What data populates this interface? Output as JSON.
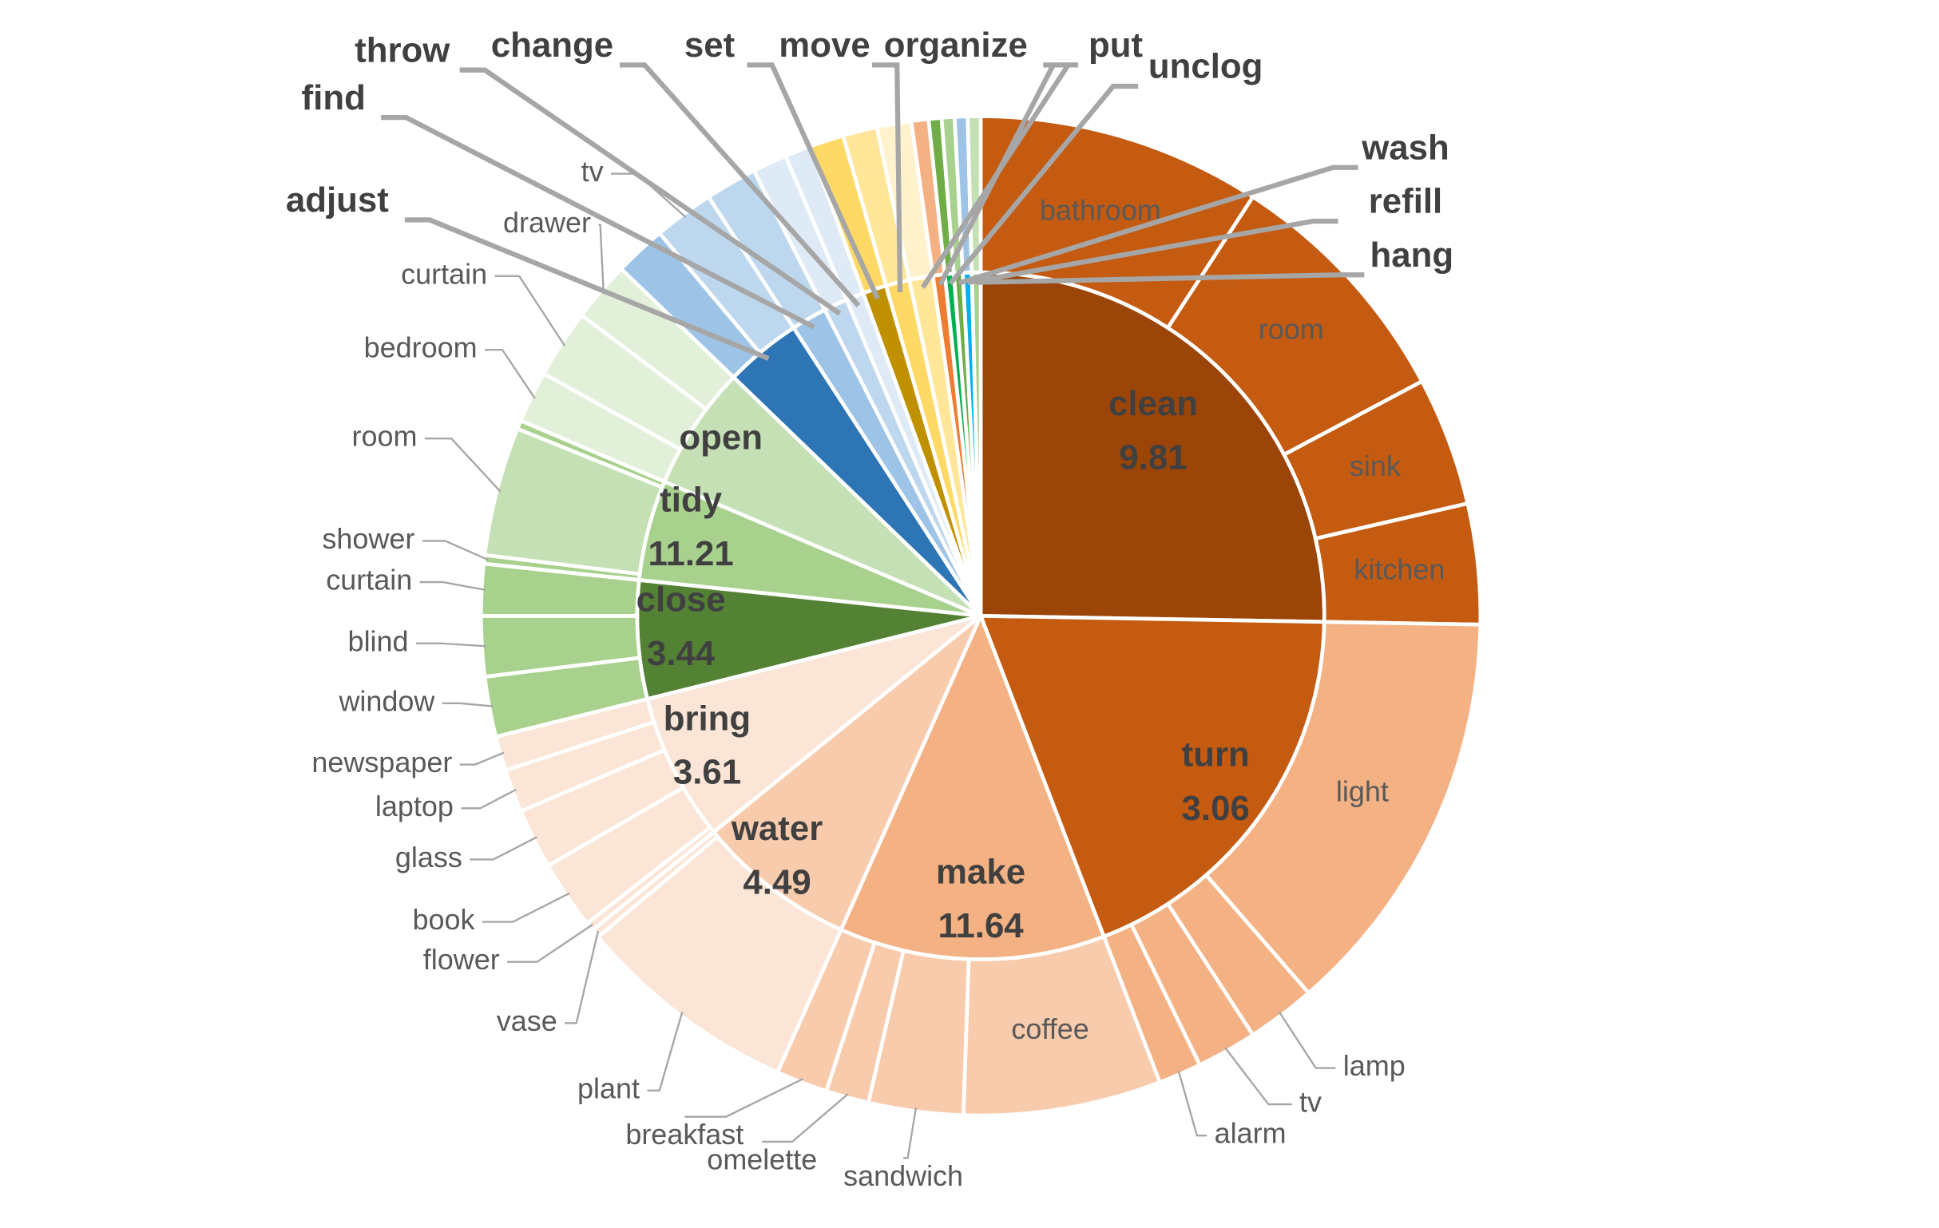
{
  "chart_data": {
    "type": "sunburst",
    "children": [
      {
        "name": "clean",
        "value": 91,
        "score": 9.81,
        "color": "#9c4509",
        "children": [
          {
            "name": "bathroom",
            "value": 33,
            "color": "#c55a11"
          },
          {
            "name": "room",
            "value": 29,
            "color": "#c55a11"
          },
          {
            "name": "sink",
            "value": 15,
            "color": "#c55a11"
          },
          {
            "name": "kitchen",
            "value": 14,
            "color": "#c55a11"
          }
        ]
      },
      {
        "name": "turn",
        "value": 68,
        "score": 3.06,
        "color": "#c55a11",
        "children": [
          {
            "name": "light",
            "value": 48,
            "color": "#f4b183"
          },
          {
            "name": "lamp",
            "value": 8,
            "color": "#f4b183"
          },
          {
            "name": "tv",
            "value": 7,
            "color": "#f4b183"
          },
          {
            "name": "alarm",
            "value": 5,
            "color": "#f4b183"
          }
        ]
      },
      {
        "name": "make",
        "value": 45,
        "score": 11.64,
        "color": "#f4b183",
        "children": [
          {
            "name": "coffee",
            "value": 23,
            "color": "#f8cbad"
          },
          {
            "name": "sandwich",
            "value": 11,
            "color": "#f8cbad"
          },
          {
            "name": "omelette",
            "value": 5,
            "color": "#f8cbad"
          },
          {
            "name": "breakfast",
            "value": 6,
            "color": "#f8cbad"
          }
        ]
      },
      {
        "name": "water",
        "value": 27,
        "score": 4.49,
        "color": "#f8cbad",
        "children": [
          {
            "name": "plant",
            "value": 26,
            "color": "#fbe5d6"
          },
          {
            "name": "vase",
            "value": 1,
            "color": "#fbe5d6"
          }
        ]
      },
      {
        "name": "bring",
        "value": 25,
        "score": 3.61,
        "color": "#fbe5d6",
        "children": [
          {
            "name": "flower",
            "value": 1,
            "color": "#fbe5d6"
          },
          {
            "name": "book",
            "value": 8,
            "color": "#fbe5d6"
          },
          {
            "name": "glass",
            "value": 7,
            "color": "#fbe5d6"
          },
          {
            "name": "laptop",
            "value": 5,
            "color": "#fbe5d6"
          },
          {
            "name": "newspaper",
            "value": 4,
            "color": "#fbe5d6"
          }
        ]
      },
      {
        "name": "close",
        "value": 20,
        "score": 3.44,
        "color": "#548235",
        "children": [
          {
            "name": "window",
            "value": 7,
            "color": "#a9d18e"
          },
          {
            "name": "blind",
            "value": 7,
            "color": "#a9d18e"
          },
          {
            "name": "curtain",
            "value": 6,
            "color": "#a9d18e"
          }
        ]
      },
      {
        "name": "tidy",
        "value": 17,
        "score": 11.21,
        "color": "#a9d18e",
        "children": [
          {
            "name": "shower",
            "value": 1,
            "color": "#a9d18e"
          },
          {
            "name": "room",
            "value": 15,
            "color": "#c5e0b4"
          },
          {
            "name": null,
            "value": 1,
            "color": "#a9d18e"
          }
        ]
      },
      {
        "name": "open",
        "value": 21,
        "color": "#c5e0b4",
        "children": [
          {
            "name": "bedroom",
            "value": 6,
            "color": "#e2f0d9"
          },
          {
            "name": "curtain",
            "value": 8,
            "color": "#e2f0d9"
          },
          {
            "name": "drawer",
            "value": 7,
            "color": "#e2f0d9"
          }
        ]
      },
      {
        "name": "adjust",
        "value": 13,
        "color": "#2e75b6",
        "children": [
          {
            "name": null,
            "value": 6,
            "color": "#9dc3e6"
          },
          {
            "name": "tv",
            "value": 7,
            "color": "#bdd7ee"
          }
        ]
      },
      {
        "name": "find",
        "value": 6,
        "color": "#9dc3e6",
        "children": [
          {
            "name": null,
            "value": 6,
            "color": "#bdd7ee"
          }
        ]
      },
      {
        "name": "throw",
        "value": 4,
        "color": "#bdd7ee",
        "children": [
          {
            "name": null,
            "value": 4,
            "color": "#deebf7"
          }
        ]
      },
      {
        "name": "change",
        "value": 3,
        "color": "#deebf7",
        "children": [
          {
            "name": null,
            "value": 3,
            "color": "#deebf7"
          }
        ]
      },
      {
        "name": "set",
        "value": 4,
        "color": "#bf9000",
        "children": [
          {
            "name": null,
            "value": 4,
            "color": "#ffd966"
          }
        ]
      },
      {
        "name": "move",
        "value": 4,
        "color": "#ffd966",
        "children": [
          {
            "name": null,
            "value": 4,
            "color": "#ffe699"
          }
        ]
      },
      {
        "name": "organize",
        "value": 4,
        "color": "#ffe699",
        "children": [
          {
            "name": null,
            "value": 4,
            "color": "#fff2cc"
          }
        ]
      },
      {
        "name": "put",
        "value": 2,
        "color": "#ed7d31",
        "children": [
          {
            "name": null,
            "value": 2,
            "color": "#f4b183"
          }
        ]
      },
      {
        "name": "unclog",
        "value": 1.5,
        "color": "#00b050",
        "children": [
          {
            "name": null,
            "value": 1.5,
            "color": "#70ad47"
          }
        ]
      },
      {
        "name": "wash",
        "value": 1.5,
        "color": "#70ad47",
        "children": [
          {
            "name": null,
            "value": 1.5,
            "color": "#a9d18e"
          }
        ]
      },
      {
        "name": "refill",
        "value": 1.5,
        "color": "#00b0f0",
        "children": [
          {
            "name": null,
            "value": 1.5,
            "color": "#9dc3e6"
          }
        ]
      },
      {
        "name": "hang",
        "value": 1.5,
        "color": "#a9d18e",
        "children": [
          {
            "name": null,
            "value": 1.5,
            "color": "#c5e0b4"
          }
        ]
      }
    ]
  }
}
